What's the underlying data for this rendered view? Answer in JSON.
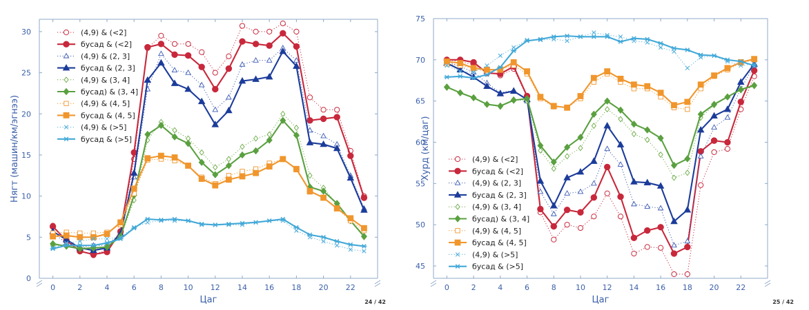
{
  "chart_data": [
    {
      "type": "line",
      "xlabel": "Цаг",
      "ylabel": "Нягт (машин/км/эгнээ)",
      "xlim": [
        -1,
        24
      ],
      "ylim": [
        0,
        31.5
      ],
      "xticks": [
        0,
        2,
        4,
        6,
        8,
        10,
        12,
        14,
        16,
        18,
        20,
        22
      ],
      "yticks": [
        0,
        5,
        10,
        15,
        20,
        25,
        30
      ],
      "legend": "top-left",
      "page_number": "24 / 42",
      "x": [
        0,
        1,
        2,
        3,
        4,
        5,
        6,
        7,
        8,
        9,
        10,
        11,
        12,
        13,
        14,
        15,
        16,
        17,
        18,
        19,
        20,
        21,
        22,
        23
      ],
      "series": [
        {
          "name": "(4,9) & (<2]",
          "color": "#c8283c",
          "style": "dotted",
          "marker": "circle-open",
          "values": [
            6.4,
            4.5,
            3.4,
            2.8,
            3.5,
            5.5,
            14.5,
            28.0,
            29.5,
            28.5,
            28.5,
            27.5,
            25.0,
            27.0,
            30.7,
            30.0,
            30.0,
            31.0,
            30.0,
            22.0,
            20.5,
            20.5,
            15.5,
            10.0
          ]
        },
        {
          "name": "бусад & (<2]",
          "color": "#c8283c",
          "style": "solid",
          "marker": "circle",
          "values": [
            6.3,
            4.6,
            3.3,
            2.9,
            3.2,
            5.7,
            15.3,
            28.1,
            28.5,
            27.2,
            27.1,
            25.7,
            23.0,
            25.5,
            28.8,
            28.5,
            28.3,
            29.8,
            28.2,
            19.2,
            19.4,
            19.6,
            14.9,
            9.8
          ]
        },
        {
          "name": "(4,9) & (2, 3]",
          "color": "#3c5ab4",
          "style": "dotted",
          "marker": "triangle-open",
          "values": [
            5.5,
            4.3,
            3.8,
            4.0,
            4.0,
            5.5,
            12.3,
            23.0,
            27.3,
            25.3,
            25.0,
            23.5,
            20.5,
            22.0,
            26.0,
            26.5,
            26.5,
            28.0,
            26.5,
            18.0,
            17.3,
            16.3,
            12.5,
            8.5
          ]
        },
        {
          "name": "бусад & (2, 3]",
          "color": "#1c3c9a",
          "style": "solid",
          "marker": "triangle",
          "values": [
            5.7,
            4.7,
            3.7,
            3.4,
            3.7,
            5.4,
            12.8,
            24.1,
            26.2,
            23.7,
            23.0,
            21.5,
            18.7,
            20.4,
            24.0,
            24.2,
            24.5,
            27.6,
            25.8,
            16.5,
            16.3,
            15.8,
            12.2,
            8.3
          ]
        },
        {
          "name": "(4,9) & (3, 4]",
          "color": "#6aaa44",
          "style": "dotted",
          "marker": "diamond-open",
          "values": [
            4.0,
            4.0,
            3.8,
            3.6,
            3.8,
            5.0,
            9.5,
            16.8,
            19.0,
            18.0,
            17.0,
            15.3,
            13.5,
            14.5,
            16.0,
            17.0,
            17.5,
            20.0,
            18.3,
            12.5,
            11.0,
            9.0,
            7.0,
            5.0
          ]
        },
        {
          "name": "бусад) & (3, 4]",
          "color": "#5aa040",
          "style": "solid",
          "marker": "diamond",
          "values": [
            4.2,
            3.9,
            3.6,
            3.7,
            3.8,
            5.1,
            10.1,
            17.5,
            18.6,
            17.2,
            16.4,
            14.1,
            12.6,
            13.7,
            15.0,
            15.5,
            16.8,
            19.2,
            17.4,
            11.1,
            10.6,
            9.1,
            7.0,
            5.1
          ]
        },
        {
          "name": "(4,9) & (4, 5]",
          "color": "#f0962d",
          "style": "dotted",
          "marker": "square-open",
          "values": [
            5.5,
            5.6,
            5.5,
            5.5,
            5.6,
            6.5,
            10.3,
            14.4,
            14.5,
            14.3,
            13.7,
            12.3,
            11.5,
            12.5,
            13.0,
            13.3,
            14.0,
            14.5,
            13.2,
            10.5,
            9.8,
            8.5,
            7.0,
            5.8
          ]
        },
        {
          "name": "бусад & (4, 5]",
          "color": "#f0962d",
          "style": "solid",
          "marker": "square",
          "values": [
            5.1,
            5.2,
            5.0,
            5.0,
            5.4,
            6.8,
            10.9,
            14.6,
            14.9,
            14.7,
            13.7,
            12.1,
            11.3,
            12.0,
            12.4,
            12.8,
            13.6,
            14.5,
            13.3,
            10.6,
            9.8,
            8.5,
            7.3,
            6.1
          ]
        },
        {
          "name": "(4,9) & (>5]",
          "color": "#55b0dc",
          "style": "dotted",
          "marker": "x",
          "values": [
            3.7,
            4.3,
            4.5,
            4.8,
            4.8,
            5.0,
            6.2,
            6.8,
            7.0,
            7.0,
            7.0,
            6.5,
            6.5,
            6.5,
            6.5,
            6.8,
            7.0,
            7.0,
            5.8,
            5.0,
            4.5,
            4.0,
            3.5,
            3.3
          ]
        },
        {
          "name": "бусад & (>5]",
          "color": "#42a8d8",
          "style": "solid",
          "marker": "star",
          "values": [
            3.6,
            4.0,
            4.0,
            4.0,
            4.3,
            4.8,
            6.1,
            7.2,
            7.1,
            7.2,
            7.0,
            6.6,
            6.5,
            6.6,
            6.7,
            6.8,
            7.0,
            7.2,
            6.2,
            5.3,
            5.0,
            4.5,
            4.1,
            3.9
          ]
        }
      ]
    },
    {
      "type": "line",
      "xlabel": "Цаг",
      "ylabel": "Хурд (км/цаг)",
      "xlim": [
        -1,
        24
      ],
      "ylim": [
        43.5,
        75
      ],
      "xticks": [
        0,
        2,
        4,
        6,
        8,
        10,
        12,
        14,
        16,
        18,
        20,
        22
      ],
      "yticks": [
        45,
        50,
        55,
        60,
        65,
        70,
        75
      ],
      "legend": "bottom-left",
      "page_number": "25 / 42",
      "x": [
        0,
        1,
        2,
        3,
        4,
        5,
        6,
        7,
        8,
        9,
        10,
        11,
        12,
        13,
        14,
        15,
        16,
        17,
        18,
        19,
        20,
        21,
        22,
        23
      ],
      "series": [
        {
          "name": "(4,9) & (<2]",
          "color": "#c8283c",
          "style": "dotted",
          "marker": "circle-open",
          "values": [
            70.0,
            69.8,
            69.4,
            68.6,
            68.1,
            68.9,
            65.5,
            51.5,
            48.2,
            50.0,
            49.6,
            51.0,
            53.8,
            51.0,
            46.5,
            47.3,
            47.2,
            44.0,
            44.0,
            54.8,
            58.8,
            59.2,
            64.0,
            68.0
          ]
        },
        {
          "name": "бусад & (<2]",
          "color": "#c8283c",
          "style": "solid",
          "marker": "circle",
          "values": [
            70.0,
            70.0,
            69.7,
            68.4,
            68.3,
            69.2,
            65.6,
            51.9,
            49.8,
            51.8,
            51.5,
            53.3,
            57.0,
            53.4,
            48.4,
            49.3,
            49.7,
            46.5,
            47.3,
            58.9,
            60.2,
            60.0,
            64.9,
            68.7
          ]
        },
        {
          "name": "(4,9) & (2, 3]",
          "color": "#3c5ab4",
          "style": "dotted",
          "marker": "triangle-open",
          "values": [
            69.8,
            69.2,
            68.5,
            67.2,
            66.0,
            66.3,
            65.0,
            54.0,
            51.3,
            53.8,
            54.0,
            55.0,
            59.2,
            57.3,
            52.5,
            52.2,
            52.0,
            47.5,
            48.0,
            58.3,
            61.8,
            63.0,
            66.5,
            69.3
          ]
        },
        {
          "name": "бусад & (2, 3]",
          "color": "#1c3c9a",
          "style": "solid",
          "marker": "triangle",
          "values": [
            69.6,
            68.8,
            67.9,
            66.8,
            65.9,
            66.2,
            65.2,
            55.3,
            52.3,
            55.7,
            56.4,
            57.7,
            62.0,
            59.7,
            55.2,
            55.1,
            54.7,
            50.4,
            51.8,
            61.5,
            63.2,
            64.0,
            67.3,
            69.5
          ]
        },
        {
          "name": "(4,9) & (3, 4]",
          "color": "#6aaa44",
          "style": "dotted",
          "marker": "diamond-open",
          "values": [
            66.6,
            66.0,
            65.4,
            64.6,
            64.3,
            65.2,
            65.0,
            59.0,
            56.8,
            58.3,
            59.3,
            62.0,
            64.0,
            62.8,
            61.0,
            60.3,
            58.5,
            55.7,
            56.3,
            63.0,
            64.5,
            65.5,
            66.3,
            66.8
          ]
        },
        {
          "name": "бусад) & (3, 4]",
          "color": "#5aa040",
          "style": "solid",
          "marker": "diamond",
          "values": [
            66.7,
            66.0,
            65.4,
            64.6,
            64.4,
            65.1,
            65.3,
            59.6,
            57.6,
            59.4,
            60.6,
            63.4,
            65.0,
            63.9,
            62.2,
            61.5,
            60.5,
            57.2,
            58.0,
            63.4,
            64.6,
            65.5,
            66.4,
            66.9
          ]
        },
        {
          "name": "(4,9) & (4, 5]",
          "color": "#f0962d",
          "style": "dotted",
          "marker": "square-open",
          "values": [
            69.5,
            69.3,
            69.0,
            68.5,
            68.9,
            69.3,
            68.3,
            65.3,
            64.3,
            64.2,
            65.3,
            67.3,
            68.3,
            67.3,
            66.5,
            66.5,
            65.5,
            64.2,
            64.0,
            66.5,
            68.0,
            68.8,
            69.6,
            70.0
          ]
        },
        {
          "name": "бусад & (4, 5]",
          "color": "#f0962d",
          "style": "solid",
          "marker": "square",
          "values": [
            69.8,
            69.6,
            69.0,
            68.8,
            68.8,
            69.7,
            68.6,
            65.5,
            64.4,
            64.2,
            65.6,
            67.8,
            68.6,
            67.7,
            67.0,
            66.8,
            66.0,
            64.5,
            64.9,
            67.0,
            68.1,
            69.0,
            69.7,
            70.1
          ]
        },
        {
          "name": "(4,9) & (>5]",
          "color": "#55b0dc",
          "style": "dotted",
          "marker": "x",
          "values": [
            69.3,
            68.6,
            68.5,
            69.3,
            70.5,
            71.5,
            72.4,
            72.4,
            72.5,
            72.3,
            72.8,
            73.3,
            73.0,
            72.8,
            72.3,
            72.1,
            71.5,
            71.0,
            69.0,
            70.3,
            70.5,
            69.8,
            69.3,
            69.5
          ]
        },
        {
          "name": "бусад & (>5]",
          "color": "#42a8d8",
          "style": "solid",
          "marker": "star",
          "values": [
            67.9,
            68.0,
            67.8,
            68.2,
            69.1,
            71.1,
            72.3,
            72.5,
            72.8,
            72.9,
            72.8,
            72.8,
            72.8,
            72.2,
            72.6,
            72.5,
            72.0,
            71.4,
            71.2,
            70.6,
            70.5,
            70.0,
            69.8,
            69.3
          ]
        }
      ]
    }
  ]
}
